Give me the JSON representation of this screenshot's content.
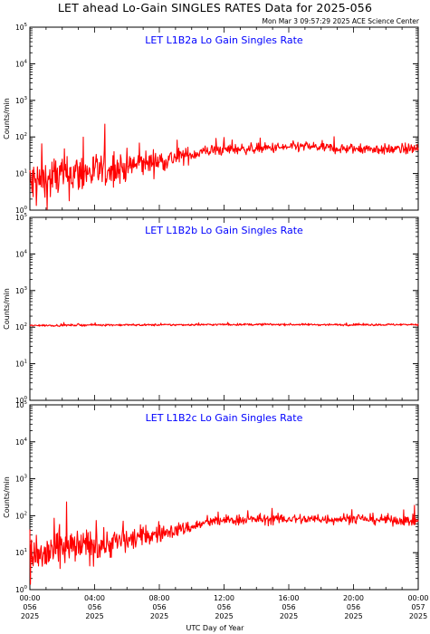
{
  "header": {
    "title": "LET ahead Lo-Gain SINGLES RATES Data for 2025-056",
    "timestamp": "Mon Mar  3 09:57:29 2025 ACE Science Center"
  },
  "colors": {
    "series": "#ff0000",
    "panel_title": "#0000ff",
    "axes": "#000000"
  },
  "x_axis": {
    "label": "UTC Day of Year",
    "range_hours": [
      0,
      24
    ],
    "ticks": [
      {
        "hours": 0,
        "time": "00:00",
        "doy": "056",
        "year": "2025"
      },
      {
        "hours": 4,
        "time": "04:00",
        "doy": "056",
        "year": "2025"
      },
      {
        "hours": 8,
        "time": "08:00",
        "doy": "056",
        "year": "2025"
      },
      {
        "hours": 12,
        "time": "12:00",
        "doy": "056",
        "year": "2025"
      },
      {
        "hours": 16,
        "time": "16:00",
        "doy": "056",
        "year": "2025"
      },
      {
        "hours": 20,
        "time": "20:00",
        "doy": "056",
        "year": "2025"
      },
      {
        "hours": 24,
        "time": "00:00",
        "doy": "057",
        "year": "2025"
      }
    ]
  },
  "chart_data": [
    {
      "type": "line",
      "title": "LET L1B2a Lo Gain Singles Rate",
      "ylabel": "Counts/min",
      "yscale": "log",
      "ylim": [
        1,
        100000
      ],
      "x_units": "hours",
      "x": [
        0,
        1,
        2,
        3,
        4,
        5,
        6,
        7,
        8,
        9,
        10,
        11,
        12,
        13,
        14,
        15,
        16,
        17,
        18,
        19,
        20,
        21,
        22,
        23,
        24
      ],
      "values": [
        5,
        6,
        9,
        10,
        11,
        13,
        15,
        19,
        22,
        27,
        33,
        42,
        45,
        47,
        48,
        50,
        52,
        55,
        52,
        48,
        47,
        48,
        45,
        47,
        48
      ],
      "spread": [
        0.55,
        0.5,
        0.45,
        0.42,
        0.38,
        0.32,
        0.3,
        0.25,
        0.22,
        0.18,
        0.14,
        0.12,
        0.11,
        0.1,
        0.1,
        0.1,
        0.1,
        0.1,
        0.1,
        0.1,
        0.1,
        0.1,
        0.1,
        0.1,
        0.1
      ]
    },
    {
      "type": "line",
      "title": "LET L1B2b Lo Gain Singles Rate",
      "ylabel": "Counts/min",
      "yscale": "log",
      "ylim": [
        1,
        100000
      ],
      "x_units": "hours",
      "x": [
        0,
        4,
        8,
        12,
        16,
        20,
        24
      ],
      "values": [
        110,
        115,
        115,
        118,
        118,
        116,
        118
      ],
      "spread": [
        0.02,
        0.02,
        0.02,
        0.02,
        0.02,
        0.02,
        0.02
      ]
    },
    {
      "type": "line",
      "title": "LET L1B2c Lo Gain Singles Rate",
      "ylabel": "Counts/min",
      "yscale": "log",
      "ylim": [
        1,
        100000
      ],
      "x_units": "hours",
      "x": [
        0,
        1,
        2,
        3,
        4,
        5,
        6,
        7,
        8,
        9,
        10,
        11,
        12,
        13,
        14,
        15,
        16,
        17,
        18,
        19,
        20,
        21,
        22,
        23,
        24
      ],
      "values": [
        8,
        9,
        12,
        14,
        16,
        18,
        22,
        27,
        32,
        40,
        50,
        65,
        75,
        78,
        80,
        80,
        82,
        80,
        80,
        82,
        85,
        80,
        78,
        75,
        72
      ],
      "spread": [
        0.5,
        0.45,
        0.4,
        0.35,
        0.32,
        0.28,
        0.24,
        0.2,
        0.16,
        0.14,
        0.12,
        0.1,
        0.1,
        0.1,
        0.1,
        0.1,
        0.1,
        0.1,
        0.1,
        0.1,
        0.1,
        0.1,
        0.1,
        0.1,
        0.1
      ]
    }
  ]
}
